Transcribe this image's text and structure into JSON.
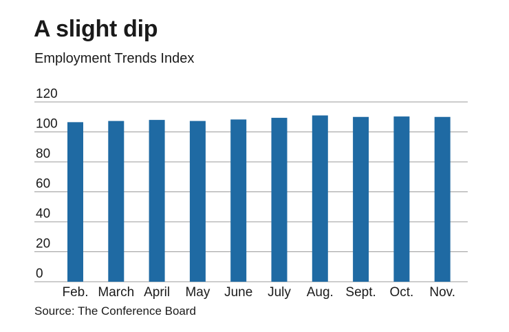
{
  "title": "A slight dip",
  "subtitle": "Employment Trends Index",
  "source": "Source: The Conference Board",
  "colors": {
    "bar": "#1f6aa3",
    "grid": "#9a9a9a",
    "text": "#1a1a1a"
  },
  "chart_data": {
    "type": "bar",
    "title": "A slight dip",
    "subtitle": "Employment Trends Index",
    "xlabel": "",
    "ylabel": "",
    "categories": [
      "Feb.",
      "March",
      "April",
      "May",
      "June",
      "July",
      "Aug.",
      "Sept.",
      "Oct.",
      "Nov."
    ],
    "values": [
      106.5,
      107.3,
      108.0,
      107.3,
      108.3,
      109.4,
      111.0,
      110.0,
      110.3,
      110.0
    ],
    "ylim": [
      0,
      120
    ],
    "yticks": [
      0,
      20,
      40,
      60,
      80,
      100,
      120
    ],
    "grid": true,
    "legend": "none"
  }
}
